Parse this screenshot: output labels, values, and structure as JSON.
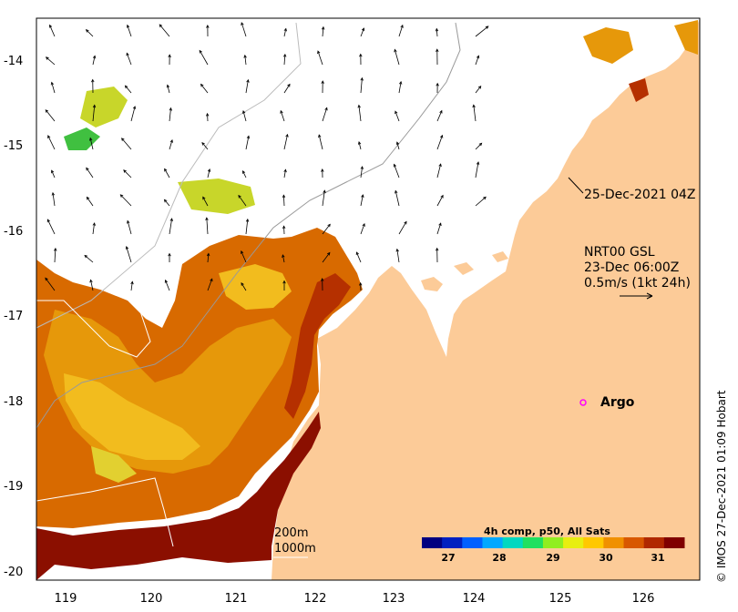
{
  "map": {
    "lat_ticks": [
      "-14",
      "-15",
      "-16",
      "-17",
      "-18",
      "-19",
      "-20"
    ],
    "lon_ticks": [
      "119",
      "120",
      "121",
      "122",
      "123",
      "124",
      "125",
      "126"
    ],
    "land_color": "#fccb98",
    "sst_colors": [
      "#8b0f00",
      "#b53000",
      "#d86a00",
      "#e6980a",
      "#f2bc1e",
      "#e2d030",
      "#c8d62a"
    ]
  },
  "annotations": {
    "satellite_time": "25-Dec-2021 04Z",
    "model_name": "NRT00 GSL",
    "model_time": "23-Dec 06:00Z",
    "arrow_scale": "0.5m/s (1kt 24h)",
    "argo_label": "Argo",
    "depth_200": "200m",
    "depth_1000": "1000m"
  },
  "colorbar": {
    "title": "4h comp, p50, All Sats",
    "ticks": [
      "27",
      "28",
      "29",
      "30",
      "31"
    ],
    "colors": [
      "#000080",
      "#0020c0",
      "#0060ff",
      "#00a8ff",
      "#00d8c0",
      "#20e060",
      "#90ee20",
      "#e8ee10",
      "#ffc800",
      "#f09000",
      "#d85800",
      "#b02800",
      "#800000"
    ]
  },
  "credit": "© IMOS 27-Dec-2021 01:09 Hobart"
}
